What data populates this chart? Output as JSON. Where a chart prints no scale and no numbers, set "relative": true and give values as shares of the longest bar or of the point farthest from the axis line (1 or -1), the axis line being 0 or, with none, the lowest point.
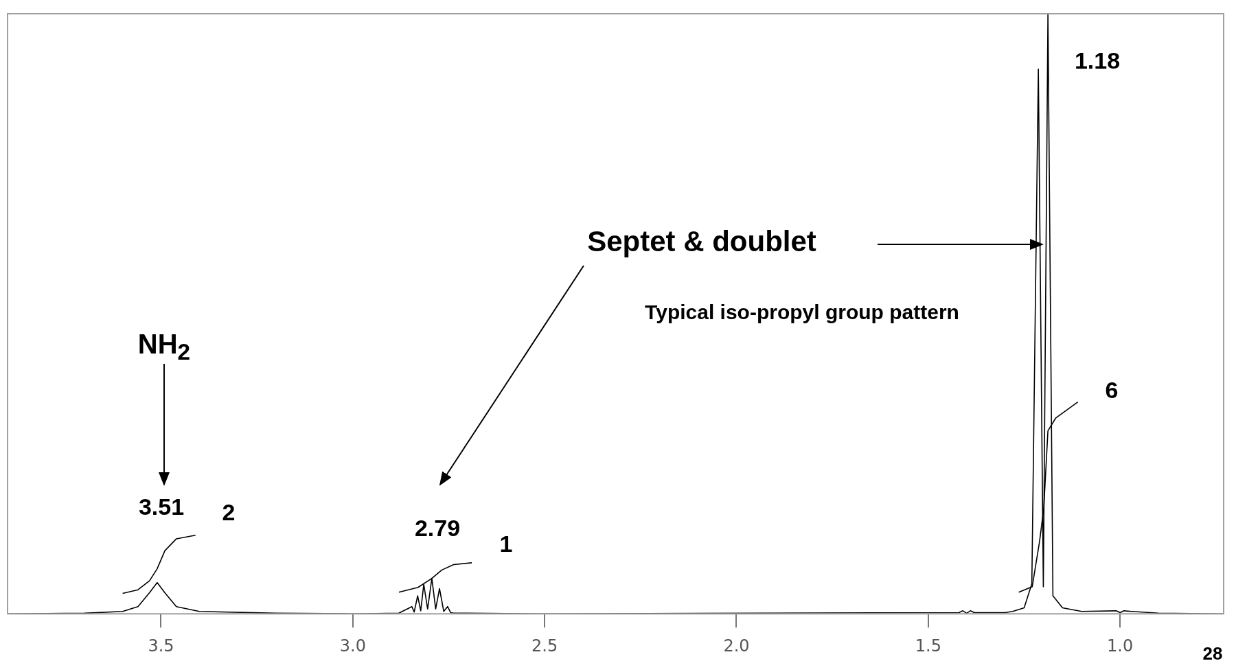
{
  "chart_data": {
    "type": "line",
    "relative": true,
    "marker": "none",
    "line_style": "solid",
    "legend": false,
    "xlim": [
      3.9,
      0.73
    ],
    "xticks": [
      {
        "value": 3.5,
        "label": "3.5"
      },
      {
        "value": 3.0,
        "label": "3.0"
      },
      {
        "value": 2.5,
        "label": "2.5"
      },
      {
        "value": 2.0,
        "label": "2.0"
      },
      {
        "value": 1.5,
        "label": "1.5"
      },
      {
        "value": 1.0,
        "label": "1.0"
      }
    ],
    "series": [
      {
        "color": "#000000",
        "x": [
          3.9,
          3.7,
          3.6,
          3.56,
          3.53,
          3.51,
          3.49,
          3.46,
          3.4,
          3.2,
          3.0,
          2.88,
          2.846,
          2.84,
          2.831,
          2.823,
          2.815,
          2.805,
          2.794,
          2.784,
          2.774,
          2.763,
          2.753,
          2.745,
          2.737,
          2.7,
          2.5,
          1.42,
          1.41,
          1.4,
          1.39,
          1.38,
          1.3,
          1.28,
          1.25,
          1.23,
          1.213,
          1.2,
          1.188,
          1.175,
          1.15,
          1.1,
          1.01,
          1.0,
          0.99,
          0.97,
          0.9,
          0.73
        ],
        "values": [
          0,
          0.001,
          0.004,
          0.012,
          0.035,
          0.052,
          0.035,
          0.012,
          0.004,
          0.001,
          0,
          0.001,
          0.012,
          0.003,
          0.03,
          0.005,
          0.049,
          0.008,
          0.059,
          0.008,
          0.042,
          0.004,
          0.012,
          0.002,
          0.001,
          0.001,
          0,
          0.002,
          0.005,
          0.001,
          0.005,
          0.002,
          0.002,
          0.004,
          0.01,
          0.05,
          0.908,
          0.045,
          1.0,
          0.03,
          0.01,
          0.004,
          0.005,
          0.002,
          0.005,
          0.004,
          0.001,
          0
        ]
      },
      {
        "color": "#000000",
        "x": [
          3.6,
          3.56,
          3.53,
          3.51,
          3.49,
          3.46,
          3.41
        ],
        "values": [
          0.034,
          0.04,
          0.055,
          0.075,
          0.105,
          0.125,
          0.131
        ]
      },
      {
        "color": "#000000",
        "x": [
          2.88,
          2.83,
          2.794,
          2.768,
          2.737,
          2.69
        ],
        "values": [
          0.036,
          0.044,
          0.059,
          0.073,
          0.082,
          0.085
        ]
      },
      {
        "color": "#000000",
        "x": [
          1.264,
          1.229,
          1.21,
          1.199,
          1.188,
          1.168,
          1.11
        ],
        "values": [
          0.036,
          0.045,
          0.12,
          0.175,
          0.305,
          0.326,
          0.353
        ]
      }
    ],
    "annotations": [
      "3.51",
      "2",
      "2.79",
      "1",
      "1.18",
      "6",
      "NH$_{2}$",
      "Septet & doublet",
      "Typical iso-propyl group pattern",
      "28"
    ]
  }
}
